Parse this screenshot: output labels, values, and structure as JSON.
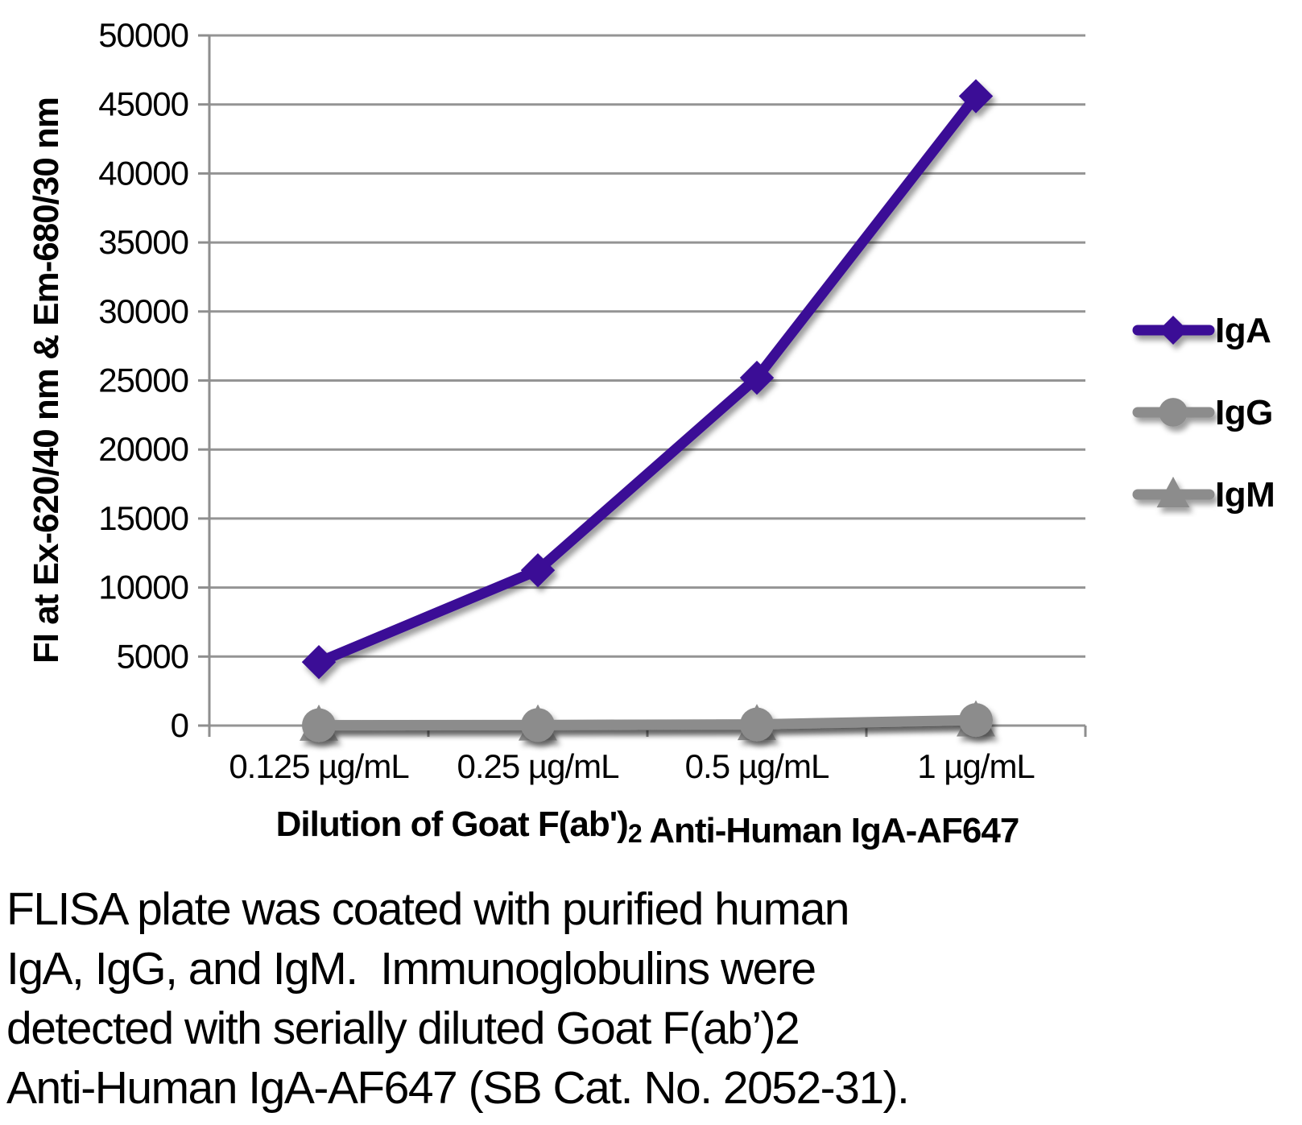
{
  "figure": {
    "background": "#ffffff"
  },
  "chart_data": {
    "type": "line",
    "title": "",
    "xlabel": "Dilution of Goat F(ab')2 Anti-Human IgA-AF647",
    "xlabel_rich": [
      {
        "text": "Dilution of Goat F(ab')",
        "sub": false
      },
      {
        "text": "2",
        "sub": true
      },
      {
        "text": " Anti-Human IgA-AF647",
        "sub": false
      }
    ],
    "ylabel": "FI at Ex-620/40 nm & Em-680/30 nm",
    "categories": [
      "0.125 µg/mL",
      "0.25 µg/mL",
      "0.5 µg/mL",
      "1 µg/mL"
    ],
    "series": [
      {
        "name": "IgA",
        "marker": "diamond",
        "color": "#3A0C96",
        "values": [
          4600,
          11250,
          25200,
          45600
        ]
      },
      {
        "name": "IgG",
        "marker": "circle",
        "color": "#8C8C8C",
        "values": [
          20,
          40,
          80,
          400
        ]
      },
      {
        "name": "IgM",
        "marker": "triangle",
        "color": "#8C8C8C",
        "values": [
          10,
          25,
          50,
          320
        ]
      }
    ],
    "ylim": [
      0,
      50000
    ],
    "ytick_step": 5000,
    "grid": "horizontal",
    "legend_position": "right",
    "legend_labels": [
      "IgA",
      "IgG",
      "IgM"
    ],
    "colors": {
      "grid": "#949494",
      "axis": "#8E8E8E",
      "text": "#000000"
    }
  },
  "caption": {
    "lines": [
      "FLISA plate was coated with purified human",
      "IgA, IgG, and IgM.  Immunoglobulins were",
      "detected with serially diluted Goat F(ab’)2",
      "Anti-Human IgA-AF647 (SB Cat. No. 2052-31)."
    ]
  }
}
